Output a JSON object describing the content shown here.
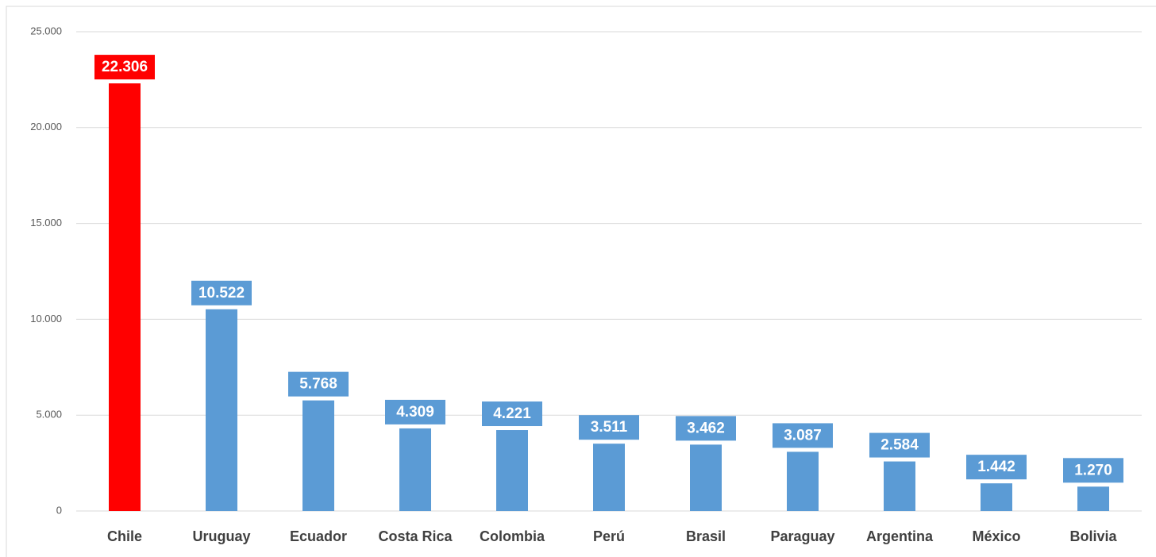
{
  "chart_data": {
    "type": "bar",
    "categories": [
      "Chile",
      "Uruguay",
      "Ecuador",
      "Costa Rica",
      "Colombia",
      "Perú",
      "Brasil",
      "Paraguay",
      "Argentina",
      "México",
      "Bolivia"
    ],
    "values": [
      22306,
      10522,
      5768,
      4309,
      4221,
      3511,
      3462,
      3087,
      2584,
      1442,
      1270
    ],
    "value_labels": [
      "22.306",
      "10.522",
      "5.768",
      "4.309",
      "4.221",
      "3.511",
      "3.462",
      "3.087",
      "2.584",
      "1.442",
      "1.270"
    ],
    "colors": [
      "#ff0000",
      "#5b9bd5",
      "#5b9bd5",
      "#5b9bd5",
      "#5b9bd5",
      "#5b9bd5",
      "#5b9bd5",
      "#5b9bd5",
      "#5b9bd5",
      "#5b9bd5",
      "#5b9bd5"
    ],
    "ylim": [
      0,
      25000
    ],
    "yticks": [
      0,
      {
        "value": 5000,
        "label": "5.000"
      },
      {
        "value": 10000,
        "label": "10.000"
      },
      {
        "value": 15000,
        "label": "15.000"
      },
      {
        "value": 20000,
        "label": "20.000"
      },
      {
        "value": 25000,
        "label": "25.000"
      }
    ],
    "grid": true
  }
}
